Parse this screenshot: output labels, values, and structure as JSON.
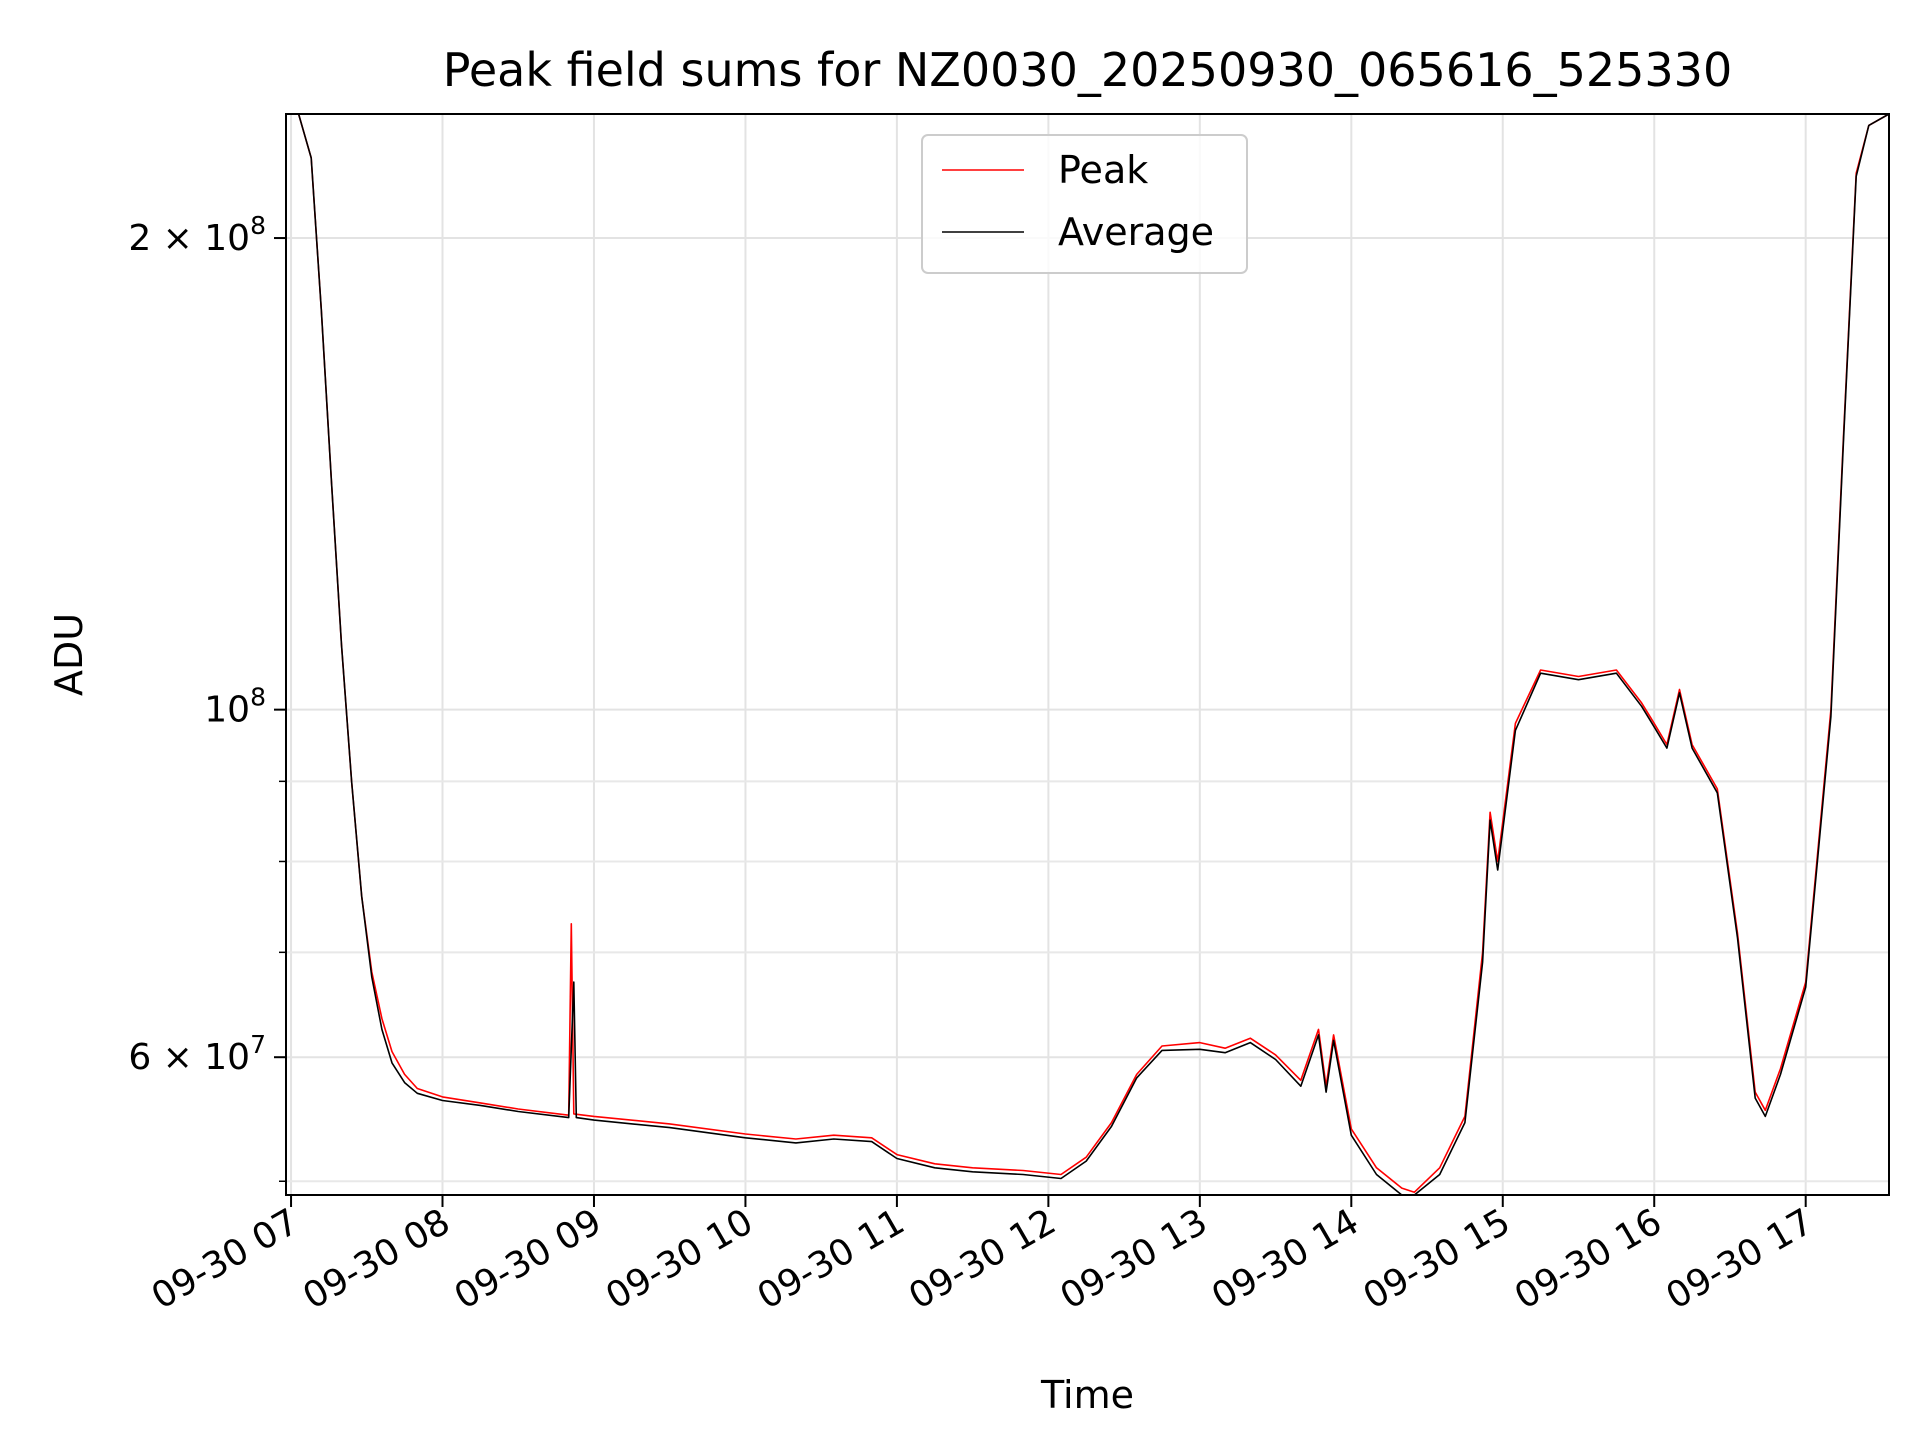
{
  "chart_data": {
    "type": "line",
    "title": "Peak field sums for NZ0030_20250930_065616_525330",
    "xlabel": "Time",
    "ylabel": "ADU",
    "yscale": "log",
    "ylim": [
      49000000,
      240000000
    ],
    "xlim": [
      "2025-09-30 06:58",
      "2025-09-30 17:33"
    ],
    "grid": true,
    "legend_position": "top-center",
    "x_ticks": [
      "09-30 07",
      "09-30 08",
      "09-30 09",
      "09-30 10",
      "09-30 11",
      "09-30 12",
      "09-30 13",
      "09-30 14",
      "09-30 15",
      "09-30 16",
      "09-30 17"
    ],
    "y_major_ticks": [
      {
        "value": 60000000,
        "mantissa": "6",
        "exponent": "7"
      },
      {
        "value": 100000000,
        "mantissa": "",
        "exponent": "8"
      },
      {
        "value": 200000000,
        "mantissa": "2",
        "exponent": "8"
      }
    ],
    "series": [
      {
        "name": "Peak",
        "color": "#ff0000",
        "points": [
          [
            "2025-09-30 06:58",
            240000000
          ],
          [
            "2025-09-30 07:03",
            240000000
          ],
          [
            "2025-09-30 07:08",
            225000000
          ],
          [
            "2025-09-30 07:12",
            180000000
          ],
          [
            "2025-09-30 07:16",
            140000000
          ],
          [
            "2025-09-30 07:20",
            110000000
          ],
          [
            "2025-09-30 07:24",
            90000000
          ],
          [
            "2025-09-30 07:28",
            76000000
          ],
          [
            "2025-09-30 07:32",
            68000000
          ],
          [
            "2025-09-30 07:36",
            63500000
          ],
          [
            "2025-09-30 07:40",
            60500000
          ],
          [
            "2025-09-30 07:45",
            58500000
          ],
          [
            "2025-09-30 07:50",
            57300000
          ],
          [
            "2025-09-30 08:00",
            56600000
          ],
          [
            "2025-09-30 08:15",
            56100000
          ],
          [
            "2025-09-30 08:30",
            55600000
          ],
          [
            "2025-09-30 08:50",
            55100000
          ],
          [
            "2025-09-30 08:51",
            73000000
          ],
          [
            "2025-09-30 08:52",
            55200000
          ],
          [
            "2025-09-30 09:00",
            55000000
          ],
          [
            "2025-09-30 09:30",
            54400000
          ],
          [
            "2025-09-30 10:00",
            53600000
          ],
          [
            "2025-09-30 10:20",
            53200000
          ],
          [
            "2025-09-30 10:35",
            53500000
          ],
          [
            "2025-09-30 10:50",
            53300000
          ],
          [
            "2025-09-30 11:00",
            52000000
          ],
          [
            "2025-09-30 11:15",
            51300000
          ],
          [
            "2025-09-30 11:30",
            51000000
          ],
          [
            "2025-09-30 11:50",
            50800000
          ],
          [
            "2025-09-30 12:05",
            50500000
          ],
          [
            "2025-09-30 12:15",
            51800000
          ],
          [
            "2025-09-30 12:25",
            54500000
          ],
          [
            "2025-09-30 12:35",
            58500000
          ],
          [
            "2025-09-30 12:45",
            61000000
          ],
          [
            "2025-09-30 13:00",
            61300000
          ],
          [
            "2025-09-30 13:10",
            60800000
          ],
          [
            "2025-09-30 13:20",
            61700000
          ],
          [
            "2025-09-30 13:30",
            60200000
          ],
          [
            "2025-09-30 13:40",
            58000000
          ],
          [
            "2025-09-30 13:47",
            62500000
          ],
          [
            "2025-09-30 13:50",
            57500000
          ],
          [
            "2025-09-30 13:53",
            62000000
          ],
          [
            "2025-09-30 14:00",
            54000000
          ],
          [
            "2025-09-30 14:10",
            51000000
          ],
          [
            "2025-09-30 14:20",
            49500000
          ],
          [
            "2025-09-30 14:25",
            49200000
          ],
          [
            "2025-09-30 14:35",
            51000000
          ],
          [
            "2025-09-30 14:45",
            55000000
          ],
          [
            "2025-09-30 14:52",
            70000000
          ],
          [
            "2025-09-30 14:55",
            86000000
          ],
          [
            "2025-09-30 14:58",
            80000000
          ],
          [
            "2025-09-30 15:05",
            98000000
          ],
          [
            "2025-09-30 15:15",
            106000000
          ],
          [
            "2025-09-30 15:30",
            105000000
          ],
          [
            "2025-09-30 15:45",
            106000000
          ],
          [
            "2025-09-30 15:55",
            101000000
          ],
          [
            "2025-09-30 16:00",
            98000000
          ],
          [
            "2025-09-30 16:05",
            95000000
          ],
          [
            "2025-09-30 16:10",
            103000000
          ],
          [
            "2025-09-30 16:15",
            95000000
          ],
          [
            "2025-09-30 16:25",
            89000000
          ],
          [
            "2025-09-30 16:33",
            72000000
          ],
          [
            "2025-09-30 16:40",
            57000000
          ],
          [
            "2025-09-30 16:44",
            55500000
          ],
          [
            "2025-09-30 16:50",
            59000000
          ],
          [
            "2025-09-30 17:00",
            67000000
          ],
          [
            "2025-09-30 17:10",
            100000000
          ],
          [
            "2025-09-30 17:15",
            150000000
          ],
          [
            "2025-09-30 17:20",
            220000000
          ],
          [
            "2025-09-30 17:25",
            236000000
          ],
          [
            "2025-09-30 17:33",
            240000000
          ]
        ]
      },
      {
        "name": "Average",
        "color": "#000000",
        "points": [
          [
            "2025-09-30 06:58",
            240000000
          ],
          [
            "2025-09-30 07:03",
            240000000
          ],
          [
            "2025-09-30 07:08",
            225000000
          ],
          [
            "2025-09-30 07:12",
            180000000
          ],
          [
            "2025-09-30 07:16",
            140000000
          ],
          [
            "2025-09-30 07:20",
            110000000
          ],
          [
            "2025-09-30 07:24",
            90000000
          ],
          [
            "2025-09-30 07:28",
            76000000
          ],
          [
            "2025-09-30 07:32",
            67500000
          ],
          [
            "2025-09-30 07:36",
            62500000
          ],
          [
            "2025-09-30 07:40",
            59500000
          ],
          [
            "2025-09-30 07:45",
            57800000
          ],
          [
            "2025-09-30 07:50",
            56900000
          ],
          [
            "2025-09-30 08:00",
            56300000
          ],
          [
            "2025-09-30 08:15",
            55900000
          ],
          [
            "2025-09-30 08:30",
            55400000
          ],
          [
            "2025-09-30 08:50",
            54900000
          ],
          [
            "2025-09-30 08:52",
            67000000
          ],
          [
            "2025-09-30 08:53",
            54900000
          ],
          [
            "2025-09-30 09:00",
            54700000
          ],
          [
            "2025-09-30 09:30",
            54100000
          ],
          [
            "2025-09-30 10:00",
            53300000
          ],
          [
            "2025-09-30 10:20",
            52900000
          ],
          [
            "2025-09-30 10:35",
            53200000
          ],
          [
            "2025-09-30 10:50",
            53000000
          ],
          [
            "2025-09-30 11:00",
            51700000
          ],
          [
            "2025-09-30 11:15",
            51000000
          ],
          [
            "2025-09-30 11:30",
            50700000
          ],
          [
            "2025-09-30 11:50",
            50500000
          ],
          [
            "2025-09-30 12:05",
            50200000
          ],
          [
            "2025-09-30 12:15",
            51500000
          ],
          [
            "2025-09-30 12:25",
            54200000
          ],
          [
            "2025-09-30 12:35",
            58200000
          ],
          [
            "2025-09-30 12:45",
            60600000
          ],
          [
            "2025-09-30 13:00",
            60700000
          ],
          [
            "2025-09-30 13:10",
            60400000
          ],
          [
            "2025-09-30 13:20",
            61300000
          ],
          [
            "2025-09-30 13:30",
            59800000
          ],
          [
            "2025-09-30 13:40",
            57500000
          ],
          [
            "2025-09-30 13:47",
            62000000
          ],
          [
            "2025-09-30 13:50",
            57000000
          ],
          [
            "2025-09-30 13:53",
            61500000
          ],
          [
            "2025-09-30 14:00",
            53500000
          ],
          [
            "2025-09-30 14:10",
            50500000
          ],
          [
            "2025-09-30 14:20",
            49000000
          ],
          [
            "2025-09-30 14:25",
            49000000
          ],
          [
            "2025-09-30 14:35",
            50500000
          ],
          [
            "2025-09-30 14:45",
            54500000
          ],
          [
            "2025-09-30 14:52",
            69000000
          ],
          [
            "2025-09-30 14:55",
            85000000
          ],
          [
            "2025-09-30 14:58",
            79000000
          ],
          [
            "2025-09-30 15:05",
            97000000
          ],
          [
            "2025-09-30 15:15",
            105500000
          ],
          [
            "2025-09-30 15:30",
            104500000
          ],
          [
            "2025-09-30 15:45",
            105500000
          ],
          [
            "2025-09-30 15:55",
            100500000
          ],
          [
            "2025-09-30 16:00",
            97500000
          ],
          [
            "2025-09-30 16:05",
            94500000
          ],
          [
            "2025-09-30 16:10",
            102500000
          ],
          [
            "2025-09-30 16:15",
            94500000
          ],
          [
            "2025-09-30 16:25",
            88500000
          ],
          [
            "2025-09-30 16:33",
            71500000
          ],
          [
            "2025-09-30 16:40",
            56500000
          ],
          [
            "2025-09-30 16:44",
            55000000
          ],
          [
            "2025-09-30 16:50",
            58500000
          ],
          [
            "2025-09-30 17:00",
            66500000
          ],
          [
            "2025-09-30 17:10",
            99000000
          ],
          [
            "2025-09-30 17:15",
            149000000
          ],
          [
            "2025-09-30 17:20",
            219000000
          ],
          [
            "2025-09-30 17:25",
            236000000
          ],
          [
            "2025-09-30 17:33",
            240000000
          ]
        ]
      }
    ]
  }
}
